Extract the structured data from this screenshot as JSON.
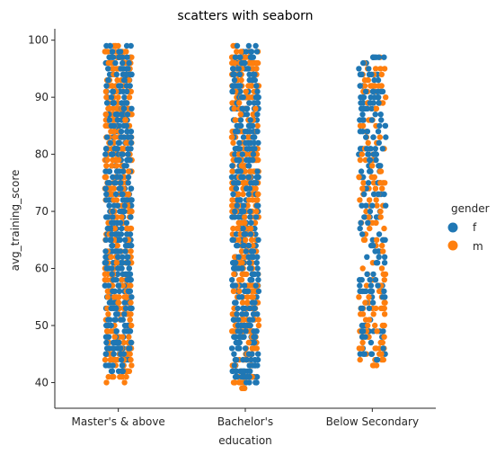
{
  "chart_data": {
    "type": "scatter",
    "title": "scatters with seaborn",
    "xlabel": "education",
    "ylabel": "avg_training_score",
    "categories": [
      "Master's & above",
      "Bachelor's",
      "Below Secondary"
    ],
    "ylim": [
      35.5,
      102
    ],
    "yticks": [
      40,
      50,
      60,
      70,
      80,
      90,
      100
    ],
    "grid": false,
    "legend": {
      "title": "gender",
      "placement": "right",
      "entries": [
        {
          "name": "f",
          "color": "#1f77b4"
        },
        {
          "name": "m",
          "color": "#ff7f0e"
        }
      ]
    },
    "series": [
      {
        "name": "f",
        "color": "#1f77b4",
        "ranges": [
          [
            42,
            99
          ],
          [
            40,
            99
          ],
          [
            44,
            97
          ]
        ],
        "outliers": [
          [],
          [],
          [
            90,
            92,
            94,
            96,
            97
          ]
        ]
      },
      {
        "name": "m",
        "color": "#ff7f0e",
        "ranges": [
          [
            40,
            99
          ],
          [
            39,
            99
          ],
          [
            43,
            97
          ]
        ],
        "outliers": [
          [],
          [],
          [
            85,
            91,
            97
          ]
        ]
      }
    ]
  }
}
